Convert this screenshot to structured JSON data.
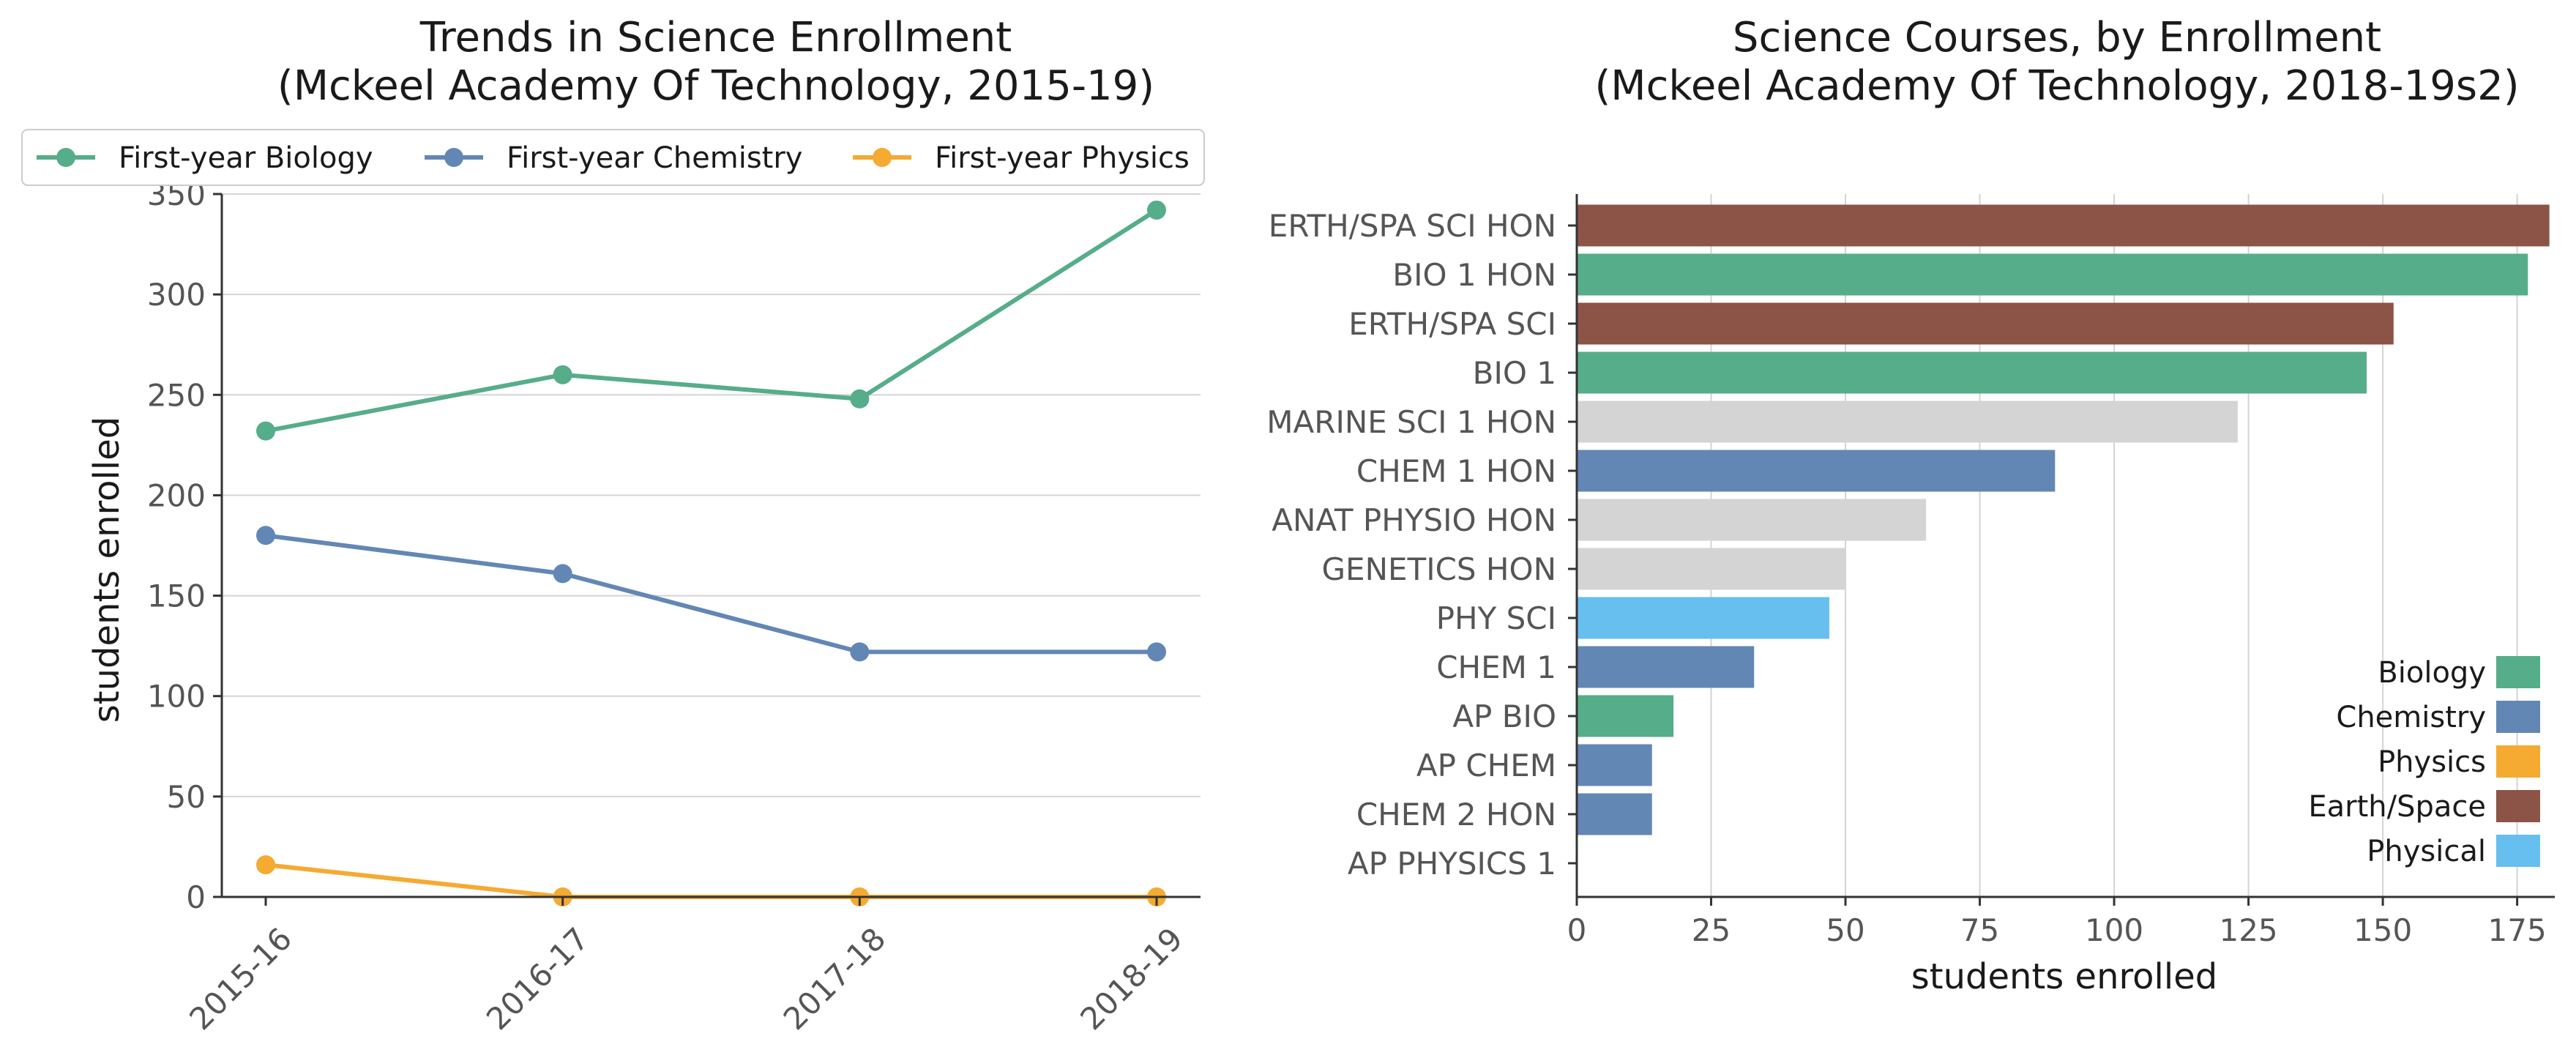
{
  "chart_data": [
    {
      "type": "line",
      "title": "Trends in Science Enrollment\n(Mckeel Academy Of Technology, 2015-19)",
      "xlabel": "",
      "ylabel": "students enrolled",
      "categories": [
        "2015-16",
        "2016-17",
        "2017-18",
        "2018-19"
      ],
      "ylim": [
        0,
        350
      ],
      "yticks": [
        0,
        50,
        100,
        150,
        200,
        250,
        300,
        350
      ],
      "grid": "horizontal",
      "legend": "top",
      "series": [
        {
          "name": "First-year Biology",
          "color": "#56ad89",
          "values": [
            232,
            260,
            248,
            342
          ]
        },
        {
          "name": "First-year Chemistry",
          "color": "#6387b5",
          "values": [
            180,
            161,
            122,
            122
          ]
        },
        {
          "name": "First-year Physics",
          "color": "#f5aa32",
          "values": [
            16,
            0,
            0,
            0
          ]
        }
      ]
    },
    {
      "type": "bar",
      "orientation": "horizontal",
      "title": "Science Courses, by Enrollment\n(Mckeel Academy Of Technology, 2018-19s2)",
      "xlabel": "students enrolled",
      "ylabel": "",
      "xlim": [
        0,
        182
      ],
      "xticks": [
        0,
        25,
        50,
        75,
        100,
        125,
        150,
        175
      ],
      "grid": "vertical",
      "legend": "lower-right",
      "categories": [
        "ERTH/SPA SCI HON",
        "BIO 1 HON",
        "ERTH/SPA SCI",
        "BIO 1",
        "MARINE SCI 1 HON",
        "CHEM 1 HON",
        "ANAT PHYSIO HON",
        "GENETICS HON",
        "PHY SCI",
        "CHEM 1",
        "AP BIO",
        "AP CHEM",
        "CHEM 2 HON",
        "AP PHYSICS 1"
      ],
      "values": [
        181,
        177,
        152,
        147,
        123,
        89,
        65,
        50,
        47,
        33,
        18,
        14,
        14,
        0
      ],
      "bar_colors": [
        "#8b5446",
        "#56ad89",
        "#8b5446",
        "#56ad89",
        "#d4d4d4",
        "#6387b5",
        "#d4d4d4",
        "#d4d4d4",
        "#66bfee",
        "#6387b5",
        "#56ad89",
        "#6387b5",
        "#6387b5",
        "#f5aa32"
      ],
      "legend_entries": [
        {
          "name": "Biology",
          "color": "#56ad89"
        },
        {
          "name": "Chemistry",
          "color": "#6387b5"
        },
        {
          "name": "Physics",
          "color": "#f5aa32"
        },
        {
          "name": "Earth/Space",
          "color": "#8b5446"
        },
        {
          "name": "Physical",
          "color": "#66bfee"
        }
      ]
    }
  ]
}
